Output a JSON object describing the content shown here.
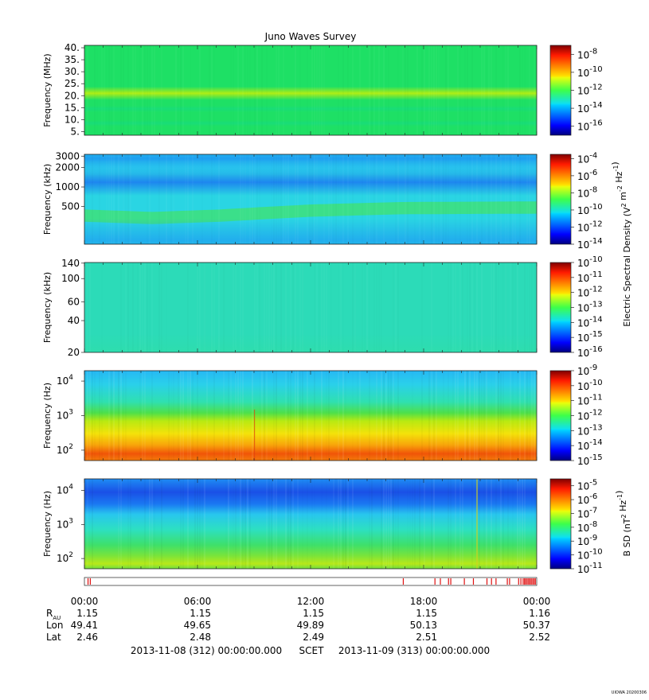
{
  "title": "Juno Waves Survey",
  "footer_tag": "UIOWA 20200306",
  "time_axis": {
    "tick_labels": [
      "00:00",
      "06:00",
      "12:00",
      "18:00",
      "00:00"
    ],
    "minor_ticks_per_major": 6
  },
  "ephemeris": {
    "rows": [
      {
        "label": "R",
        "sub": "AU",
        "values": [
          "1.15",
          "1.15",
          "1.15",
          "1.15",
          "1.16"
        ]
      },
      {
        "label": "Lon",
        "sub": "",
        "values": [
          "49.41",
          "49.65",
          "49.89",
          "50.13",
          "50.37"
        ]
      },
      {
        "label": "Lat",
        "sub": "",
        "values": [
          "2.46",
          "2.48",
          "2.49",
          "2.51",
          "2.52"
        ]
      }
    ]
  },
  "time_range": {
    "start": "2013-11-08 (312) 00:00:00.000",
    "label": "SCET",
    "end": "2013-11-09 (313) 00:00:00.000"
  },
  "colorbar_labels": {
    "electric": "Electric Spectral Density (V2 m-2 Hz-1)",
    "magnetic": "B SD (nT2 Hz-1)"
  },
  "chart_data": [
    {
      "type": "heatmap",
      "panel": "HFR-high",
      "ylabel": "Frequency (MHz)",
      "scale": "linear",
      "ylim": [
        3.5,
        41
      ],
      "yticks": [
        {
          "v": 40,
          "label": "40."
        },
        {
          "v": 35,
          "label": "35."
        },
        {
          "v": 30,
          "label": "30."
        },
        {
          "v": 25,
          "label": "25."
        },
        {
          "v": 20,
          "label": "20."
        },
        {
          "v": 15,
          "label": "15."
        },
        {
          "v": 10,
          "label": "10."
        },
        {
          "v": 5,
          "label": "5."
        }
      ],
      "base_color": "#1ee065",
      "features": [
        {
          "kind": "band",
          "y": 21,
          "width": 0.025,
          "color": "#b6ee10",
          "opacity": 0.95
        },
        {
          "kind": "band",
          "y": 14.5,
          "width": 0.012,
          "color": "#0ed69c",
          "opacity": 0.35
        },
        {
          "kind": "band",
          "y": 8.5,
          "width": 0.012,
          "color": "#0ed69c",
          "opacity": 0.35
        }
      ],
      "colorbar": {
        "range": [
          -17,
          -7
        ],
        "ticks": [
          {
            "exp": -8,
            "label": "-8"
          },
          {
            "exp": -10,
            "label": "-10"
          },
          {
            "exp": -12,
            "label": "-12"
          },
          {
            "exp": -14,
            "label": "-14"
          },
          {
            "exp": -16,
            "label": "-16"
          }
        ]
      }
    },
    {
      "type": "heatmap",
      "panel": "HFR-low",
      "ylabel": "Frequency (kHz)",
      "scale": "log",
      "ylim": [
        130,
        3200
      ],
      "yticks": [
        {
          "v": 3000,
          "label": "3000"
        },
        {
          "v": 2000,
          "label": "2000"
        },
        {
          "v": 1000,
          "label": "1000"
        },
        {
          "v": 500,
          "label": "500"
        }
      ],
      "base_color": "#2ad5e3",
      "features": [
        {
          "kind": "band",
          "y": 2750,
          "width": 0.06,
          "color": "#1b8ef5",
          "opacity": 0.75
        },
        {
          "kind": "band",
          "y": 1180,
          "width": 0.05,
          "color": "#1a73f2",
          "opacity": 0.8
        },
        {
          "kind": "band",
          "y": 2000,
          "width": 0.03,
          "color": "#29c4f0",
          "opacity": 0.6
        },
        {
          "kind": "band_curve",
          "x": [
            0,
            0.15,
            0.3,
            0.5,
            0.7,
            1
          ],
          "y": [
            360,
            330,
            360,
            430,
            470,
            480
          ],
          "width": 0.05,
          "color": "#3ee07a",
          "opacity": 0.85
        },
        {
          "kind": "band",
          "y": 150,
          "width": 0.08,
          "color": "#1b8ef5",
          "opacity": 0.55
        }
      ],
      "colorbar": {
        "range": [
          -14,
          -3.5
        ],
        "ticks": [
          {
            "exp": -4,
            "label": "-4"
          },
          {
            "exp": -6,
            "label": "-6"
          },
          {
            "exp": -8,
            "label": "-8"
          },
          {
            "exp": -10,
            "label": "-10"
          },
          {
            "exp": -12,
            "label": "-12"
          },
          {
            "exp": -14,
            "label": "-14"
          }
        ]
      }
    },
    {
      "type": "heatmap",
      "panel": "LFR-high",
      "ylabel": "Frequency (kHz)",
      "scale": "log",
      "ylim": [
        20,
        142
      ],
      "yticks": [
        {
          "v": 140,
          "label": "140"
        },
        {
          "v": 100,
          "label": "100"
        },
        {
          "v": 60,
          "label": "60"
        },
        {
          "v": 40,
          "label": "40"
        },
        {
          "v": 20,
          "label": "20"
        }
      ],
      "base_color": "#2cdbb8",
      "features": [
        {
          "kind": "band",
          "y": 21,
          "width": 0.06,
          "color": "#2fdfa6",
          "opacity": 0.5
        }
      ],
      "colorbar": {
        "range": [
          -16,
          -10
        ],
        "ticks": [
          {
            "exp": -10,
            "label": "-10"
          },
          {
            "exp": -11,
            "label": "-11"
          },
          {
            "exp": -12,
            "label": "-12"
          },
          {
            "exp": -13,
            "label": "-13"
          },
          {
            "exp": -14,
            "label": "-14"
          },
          {
            "exp": -15,
            "label": "-15"
          },
          {
            "exp": -16,
            "label": "-16"
          }
        ]
      }
    },
    {
      "type": "heatmap",
      "panel": "LFR-low (E)",
      "ylabel": "Frequency (Hz)",
      "scale": "log",
      "ylim": [
        50,
        20000
      ],
      "yticks": [
        {
          "v": 10000,
          "label": "10",
          "exp": "4"
        },
        {
          "v": 1000,
          "label": "10",
          "exp": "3"
        },
        {
          "v": 100,
          "label": "10",
          "exp": "2"
        }
      ],
      "base_color": "#29d0ec",
      "features": [
        {
          "kind": "gradient",
          "stops": [
            {
              "y": 20000,
              "color": "#26b8f4"
            },
            {
              "y": 8000,
              "color": "#2ad0ea"
            },
            {
              "y": 2500,
              "color": "#2fe0b0"
            },
            {
              "y": 1200,
              "color": "#4ee04a"
            },
            {
              "y": 700,
              "color": "#b8ea12"
            },
            {
              "y": 300,
              "color": "#f4e20a"
            },
            {
              "y": 140,
              "color": "#f8a40a"
            },
            {
              "y": 80,
              "color": "#f15508"
            },
            {
              "y": 50,
              "color": "#f27a0a"
            }
          ]
        },
        {
          "kind": "vline",
          "x": 0.376,
          "color": "#e04010",
          "opacity": 0.7,
          "ymax": 1500
        }
      ],
      "colorbar": {
        "range": [
          -15,
          -9
        ],
        "ticks": [
          {
            "exp": -9,
            "label": "-9"
          },
          {
            "exp": -10,
            "label": "-10"
          },
          {
            "exp": -11,
            "label": "-11"
          },
          {
            "exp": -12,
            "label": "-12"
          },
          {
            "exp": -13,
            "label": "-13"
          },
          {
            "exp": -14,
            "label": "-14"
          },
          {
            "exp": -15,
            "label": "-15"
          }
        ]
      }
    },
    {
      "type": "heatmap",
      "panel": "LFR-low (B)",
      "ylabel": "Frequency (Hz)",
      "scale": "log",
      "ylim": [
        50,
        22000
      ],
      "yticks": [
        {
          "v": 10000,
          "label": "10",
          "exp": "4"
        },
        {
          "v": 1000,
          "label": "10",
          "exp": "3"
        },
        {
          "v": 100,
          "label": "10",
          "exp": "2"
        }
      ],
      "base_color": "#2ad6e4",
      "features": [
        {
          "kind": "gradient",
          "stops": [
            {
              "y": 22000,
              "color": "#1e8cf4"
            },
            {
              "y": 9000,
              "color": "#1a50e6"
            },
            {
              "y": 4000,
              "color": "#1a78f2"
            },
            {
              "y": 2000,
              "color": "#28c6ee"
            },
            {
              "y": 700,
              "color": "#2de0c0"
            },
            {
              "y": 250,
              "color": "#3ee06a"
            },
            {
              "y": 120,
              "color": "#7ae43a"
            },
            {
              "y": 70,
              "color": "#b8e81a"
            },
            {
              "y": 50,
              "color": "#6ee040"
            }
          ]
        },
        {
          "kind": "vline",
          "x": 0.868,
          "color": "#d0d020",
          "opacity": 0.95,
          "ymax": 22000
        }
      ],
      "colorbar": {
        "range": [
          -11,
          -4.5
        ],
        "ticks": [
          {
            "exp": -5,
            "label": "-5"
          },
          {
            "exp": -6,
            "label": "-6"
          },
          {
            "exp": -7,
            "label": "-7"
          },
          {
            "exp": -8,
            "label": "-8"
          },
          {
            "exp": -9,
            "label": "-9"
          },
          {
            "exp": -10,
            "label": "-10"
          },
          {
            "exp": -11,
            "label": "-11"
          }
        ]
      }
    }
  ],
  "mode_strip": {
    "events": [
      0.008,
      0.013,
      0.705,
      0.775,
      0.787,
      0.805,
      0.81,
      0.84,
      0.86,
      0.89,
      0.9,
      0.91,
      0.935,
      0.94,
      0.96,
      0.965,
      0.97,
      0.973,
      0.976,
      0.979,
      0.982,
      0.985,
      0.988,
      0.991,
      0.994,
      0.997
    ],
    "color": "#e01010"
  }
}
